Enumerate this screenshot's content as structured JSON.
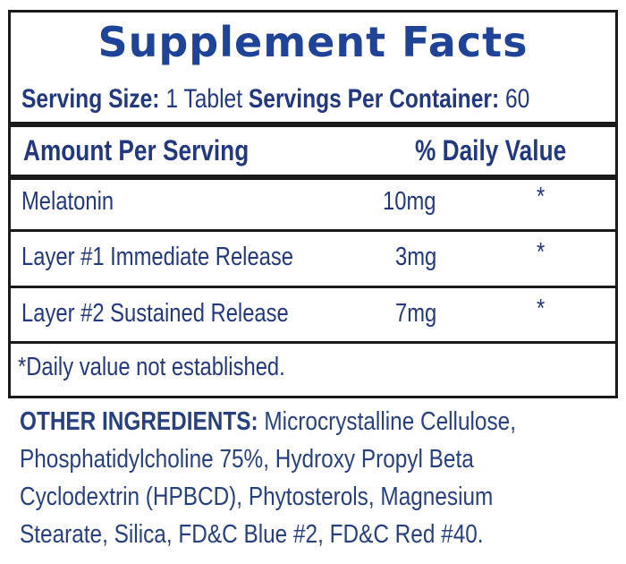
{
  "title": "Supplement Facts",
  "serving": {
    "size_label": "Serving Size:",
    "size_value": "1 Tablet",
    "per_container_label": "Servings Per Container:",
    "per_container_value": "60"
  },
  "header": {
    "amount": "Amount Per Serving",
    "daily_value": "% Daily Value"
  },
  "rows": [
    {
      "name": "Melatonin",
      "amount": "10mg",
      "dv": "*"
    },
    {
      "name": "Layer #1 Immediate Release",
      "amount": "3mg",
      "dv": "*"
    },
    {
      "name": "Layer #2 Sustained Release",
      "amount": "7mg",
      "dv": "*"
    }
  ],
  "footnote": "*Daily value not established.",
  "other_ingredients": {
    "label": "OTHER INGREDIENTS:",
    "lines": [
      "Microcrystalline Cellulose,",
      "Phosphatidylcholine 75%, Hydroxy Propyl Beta",
      "Cyclodextrin (HPBCD), Phytosterols, Magnesium",
      "Stearate, Silica, FD&C Blue #2, FD&C Red #40."
    ]
  },
  "colors": {
    "text": "#22397f",
    "title": "#1f4396",
    "border": "#1a1a1a"
  }
}
